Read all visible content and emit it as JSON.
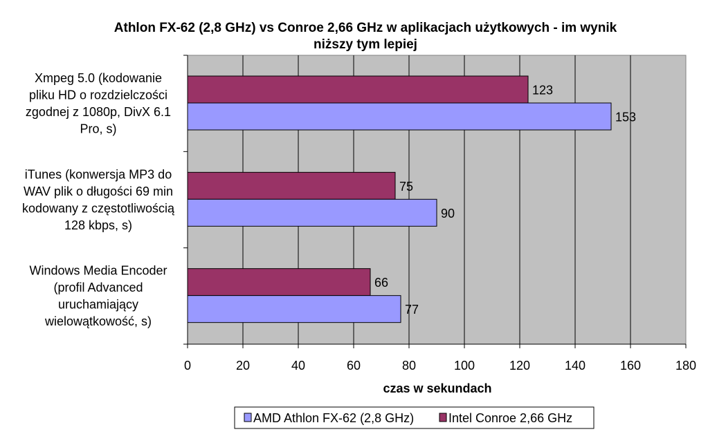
{
  "chart_data": {
    "type": "bar",
    "orientation": "horizontal",
    "title_lines": [
      "Athlon FX-62 (2,8 GHz) vs Conroe 2,66 GHz w aplikacjach użytkowych - im wynik",
      "niższy tym lepiej"
    ],
    "categories": [
      {
        "label_lines": [
          "Xmpeg 5.0 (kodowanie",
          "pliku HD o rozdzielczości",
          "zgodnej z 1080p, DivX 6.1",
          "Pro, s)"
        ]
      },
      {
        "label_lines": [
          "iTunes (konwersja MP3 do",
          "WAV plik o długości 69 min",
          "kodowany z częstotliwością",
          "128 kbps, s)"
        ]
      },
      {
        "label_lines": [
          "Windows Media Encoder",
          "(profil Advanced",
          "uruchamiający",
          "wielowątkowość, s)"
        ]
      }
    ],
    "series": [
      {
        "name": "Intel Conroe 2,66 GHz",
        "color": "#993366",
        "values": [
          123,
          75,
          66
        ]
      },
      {
        "name": "AMD Athlon FX-62 (2,8 GHz)",
        "color": "#9999ff",
        "values": [
          153,
          90,
          77
        ]
      }
    ],
    "legend_order": [
      1,
      0
    ],
    "xlabel": "czas w sekundach",
    "ylabel": "",
    "xlim": [
      0,
      180
    ],
    "x_ticks": [
      0,
      20,
      40,
      60,
      80,
      100,
      120,
      140,
      160,
      180
    ],
    "grid": true,
    "legend_position": "bottom",
    "plot_background": "#c0c0c0"
  }
}
